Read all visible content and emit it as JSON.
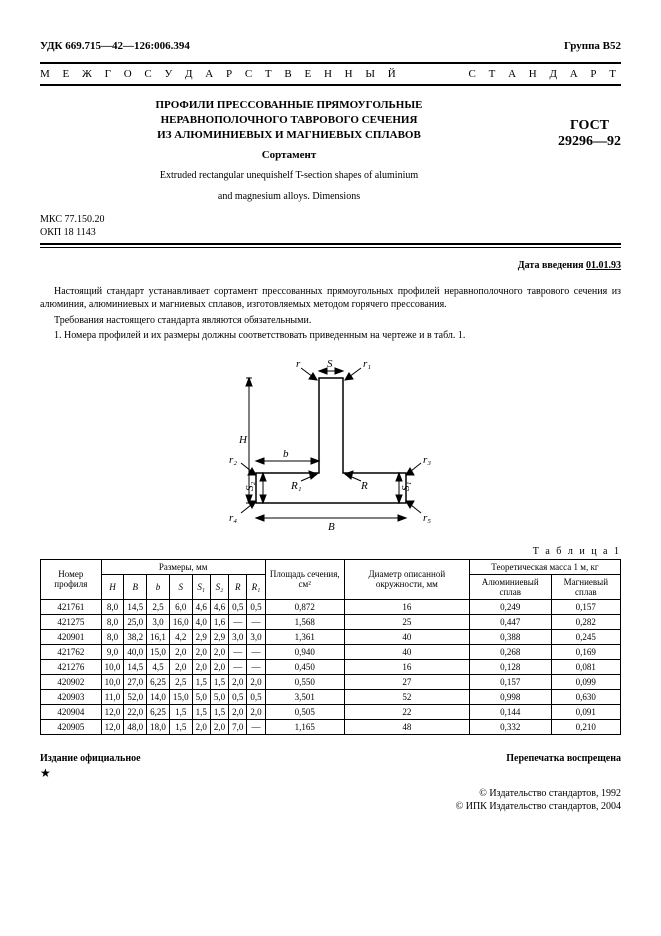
{
  "header": {
    "udk": "УДК 669.715—42—126:006.394",
    "group": "Группа В52",
    "interstate_left": "М Е Ж Г О С У Д А Р С Т В Е Н Н Ы Й",
    "interstate_right": "С Т А Н Д А Р Т",
    "title_ru_1": "ПРОФИЛИ ПРЕССОВАННЫЕ ПРЯМОУГОЛЬНЫЕ",
    "title_ru_2": "НЕРАВНОПОЛОЧНОГО ТАВРОВОГО СЕЧЕНИЯ",
    "title_ru_3": "ИЗ АЛЮМИНИЕВЫХ И МАГНИЕВЫХ СПЛАВОВ",
    "subtitle": "Сортамент",
    "title_en_1": "Extruded rectangular unequishelf T-section shapes of aluminium",
    "title_en_2": "and magnesium alloys. Dimensions",
    "gost_line1": "ГОСТ",
    "gost_line2": "29296—92",
    "mkc": "МКС 77.150.20",
    "okp": "ОКП 18 1143",
    "date_label": "Дата введения",
    "date_value": "01.01.93"
  },
  "body": {
    "p1": "Настоящий стандарт устанавливает сортамент прессованных прямоугольных профилей неравнополочного таврового сечения из алюминия, алюминиевых и магниевых сплавов, изготовляемых методом горячего прессования.",
    "p2": "Требования настоящего стандарта являются обязательными.",
    "p3": "1. Номера профилей и их размеры должны соответствовать приведенным на чертеже и в табл. 1."
  },
  "diagram_labels": {
    "r": "r",
    "S": "S",
    "r1": "r₁",
    "H": "H",
    "b": "b",
    "r2": "r₂",
    "R1": "R₁",
    "R": "R",
    "r3": "r₃",
    "S2l": "S₂",
    "S1r": "S₁",
    "r4": "r₄",
    "B": "B",
    "r5": "r₅"
  },
  "table": {
    "caption": "Т а б л и ц а  1",
    "headers": {
      "num": "Номер профиля",
      "dims": "Размеры, мм",
      "H": "H",
      "B": "B",
      "b": "b",
      "S": "S",
      "S1": "S₁",
      "S2": "S₂",
      "R": "R",
      "R1": "R₁",
      "area": "Площадь сечения, см²",
      "diam": "Диаметр описанной окружности, мм",
      "mass": "Теоретическая масса 1 м, кг",
      "al": "Алюминиевый сплав",
      "mg": "Магниевый сплав"
    },
    "rows": [
      {
        "n": "421761",
        "H": "8,0",
        "B": "14,5",
        "b": "2,5",
        "S": "6,0",
        "S1": "4,6",
        "S2": "4,6",
        "R": "0,5",
        "R1": "0,5",
        "area": "0,872",
        "d": "16",
        "al": "0,249",
        "mg": "0,157"
      },
      {
        "n": "421275",
        "H": "8,0",
        "B": "25,0",
        "b": "3,0",
        "S": "16,0",
        "S1": "4,0",
        "S2": "1,6",
        "R": "—",
        "R1": "—",
        "area": "1,568",
        "d": "25",
        "al": "0,447",
        "mg": "0,282"
      },
      {
        "n": "420901",
        "H": "8,0",
        "B": "38,2",
        "b": "16,1",
        "S": "4,2",
        "S1": "2,9",
        "S2": "2,9",
        "R": "3,0",
        "R1": "3,0",
        "area": "1,361",
        "d": "40",
        "al": "0,388",
        "mg": "0,245"
      },
      {
        "n": "421762",
        "H": "9,0",
        "B": "40,0",
        "b": "15,0",
        "S": "2,0",
        "S1": "2,0",
        "S2": "2,0",
        "R": "—",
        "R1": "—",
        "area": "0,940",
        "d": "40",
        "al": "0,268",
        "mg": "0,169"
      },
      {
        "n": "421276",
        "H": "10,0",
        "B": "14,5",
        "b": "4,5",
        "S": "2,0",
        "S1": "2,0",
        "S2": "2,0",
        "R": "—",
        "R1": "—",
        "area": "0,450",
        "d": "16",
        "al": "0,128",
        "mg": "0,081"
      },
      {
        "n": "420902",
        "H": "10,0",
        "B": "27,0",
        "b": "6,25",
        "S": "2,5",
        "S1": "1,5",
        "S2": "1,5",
        "R": "2,0",
        "R1": "2,0",
        "area": "0,550",
        "d": "27",
        "al": "0,157",
        "mg": "0,099"
      },
      {
        "n": "420903",
        "H": "11,0",
        "B": "52,0",
        "b": "14,0",
        "S": "15,0",
        "S1": "5,0",
        "S2": "5,0",
        "R": "0,5",
        "R1": "0,5",
        "area": "3,501",
        "d": "52",
        "al": "0,998",
        "mg": "0,630"
      },
      {
        "n": "420904",
        "H": "12,0",
        "B": "22,0",
        "b": "6,25",
        "S": "1,5",
        "S1": "1,5",
        "S2": "1,5",
        "R": "2,0",
        "R1": "2,0",
        "area": "0,505",
        "d": "22",
        "al": "0,144",
        "mg": "0,091"
      },
      {
        "n": "420905",
        "H": "12,0",
        "B": "48,0",
        "b": "18,0",
        "S": "1,5",
        "S1": "2,0",
        "S2": "2,0",
        "R": "7,0",
        "R1": "—",
        "area": "1,165",
        "d": "48",
        "al": "0,332",
        "mg": "0,210"
      }
    ]
  },
  "footer": {
    "left": "Издание официальное",
    "right": "Перепечатка воспрещена",
    "star": "★",
    "c1": "© Издательство стандартов, 1992",
    "c2": "© ИПК Издательство стандартов, 2004"
  }
}
